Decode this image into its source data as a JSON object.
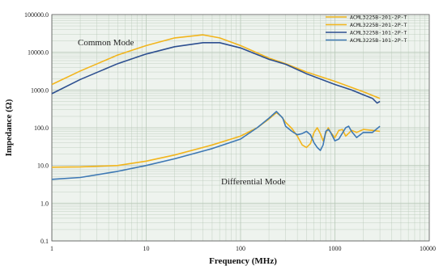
{
  "chart_data": {
    "type": "line",
    "xlabel": "Frequency (MHz)",
    "ylabel": "Impedance (Ω)",
    "x_scale": "log",
    "y_scale": "log",
    "xlim": [
      1,
      10000
    ],
    "ylim": [
      0.1,
      100000
    ],
    "x_ticks": [
      "1",
      "10",
      "100",
      "1000",
      "10000"
    ],
    "y_ticks": [
      "0.1",
      "1.0",
      "10.0",
      "100.0",
      "1000.0",
      "10000.0",
      "100000.0"
    ],
    "grid": true,
    "legend_position": "top-right",
    "annotations": [
      "Common Mode",
      "Differential Mode"
    ],
    "colors": {
      "orange": "#f2b51c",
      "navy": "#2d4f90",
      "steel": "#3e78b4",
      "plot_bg": "#eef3ee",
      "grid": "#b8c8b8"
    },
    "series": [
      {
        "name": "ACML3225B-201-2P-T",
        "color": "#f2b51c",
        "mode": "Common Mode",
        "points": [
          [
            1,
            1400
          ],
          [
            2,
            3200
          ],
          [
            5,
            8500
          ],
          [
            10,
            15000
          ],
          [
            20,
            24000
          ],
          [
            40,
            29000
          ],
          [
            60,
            24000
          ],
          [
            100,
            15000
          ],
          [
            200,
            7000
          ],
          [
            300,
            5000
          ],
          [
            500,
            3000
          ],
          [
            1000,
            1700
          ],
          [
            2000,
            900
          ],
          [
            3000,
            600
          ]
        ]
      },
      {
        "name": "ACML3225B-201-2P-T",
        "color": "#f2b51c",
        "mode": "Differential Mode",
        "points": [
          [
            1,
            9
          ],
          [
            2,
            9.2
          ],
          [
            5,
            10
          ],
          [
            10,
            13
          ],
          [
            20,
            19
          ],
          [
            50,
            35
          ],
          [
            100,
            60
          ],
          [
            150,
            100
          ],
          [
            200,
            170
          ],
          [
            240,
            250
          ],
          [
            270,
            200
          ],
          [
            300,
            140
          ],
          [
            350,
            95
          ],
          [
            400,
            60
          ],
          [
            450,
            35
          ],
          [
            500,
            30
          ],
          [
            550,
            38
          ],
          [
            600,
            75
          ],
          [
            650,
            100
          ],
          [
            700,
            70
          ],
          [
            750,
            45
          ],
          [
            800,
            70
          ],
          [
            850,
            100
          ],
          [
            900,
            75
          ],
          [
            1000,
            55
          ],
          [
            1100,
            85
          ],
          [
            1200,
            90
          ],
          [
            1300,
            60
          ],
          [
            1500,
            85
          ],
          [
            1700,
            75
          ],
          [
            2000,
            90
          ],
          [
            2500,
            85
          ],
          [
            3000,
            80
          ]
        ]
      },
      {
        "name": "ACML3225B-101-2P-T",
        "color": "#2d4f90",
        "mode": "Common Mode",
        "points": [
          [
            1,
            800
          ],
          [
            2,
            1900
          ],
          [
            5,
            5000
          ],
          [
            10,
            9000
          ],
          [
            20,
            14000
          ],
          [
            40,
            18000
          ],
          [
            60,
            18000
          ],
          [
            100,
            13000
          ],
          [
            200,
            6500
          ],
          [
            300,
            4800
          ],
          [
            500,
            2700
          ],
          [
            1000,
            1400
          ],
          [
            1500,
            1000
          ],
          [
            2000,
            750
          ],
          [
            2500,
            600
          ],
          [
            2800,
            450
          ],
          [
            3000,
            500
          ]
        ]
      },
      {
        "name": "ACML3225B-101-2P-T",
        "color": "#3e78b4",
        "mode": "Differential Mode",
        "points": [
          [
            1,
            4.3
          ],
          [
            2,
            4.8
          ],
          [
            5,
            7
          ],
          [
            10,
            10
          ],
          [
            20,
            15
          ],
          [
            50,
            28
          ],
          [
            100,
            50
          ],
          [
            150,
            100
          ],
          [
            200,
            180
          ],
          [
            240,
            270
          ],
          [
            280,
            180
          ],
          [
            300,
            110
          ],
          [
            350,
            80
          ],
          [
            400,
            65
          ],
          [
            450,
            70
          ],
          [
            500,
            80
          ],
          [
            550,
            65
          ],
          [
            600,
            40
          ],
          [
            650,
            30
          ],
          [
            700,
            25
          ],
          [
            750,
            35
          ],
          [
            800,
            80
          ],
          [
            850,
            90
          ],
          [
            900,
            75
          ],
          [
            1000,
            45
          ],
          [
            1100,
            50
          ],
          [
            1300,
            100
          ],
          [
            1400,
            110
          ],
          [
            1500,
            80
          ],
          [
            1700,
            55
          ],
          [
            2000,
            75
          ],
          [
            2500,
            75
          ],
          [
            3000,
            110
          ]
        ]
      }
    ]
  }
}
